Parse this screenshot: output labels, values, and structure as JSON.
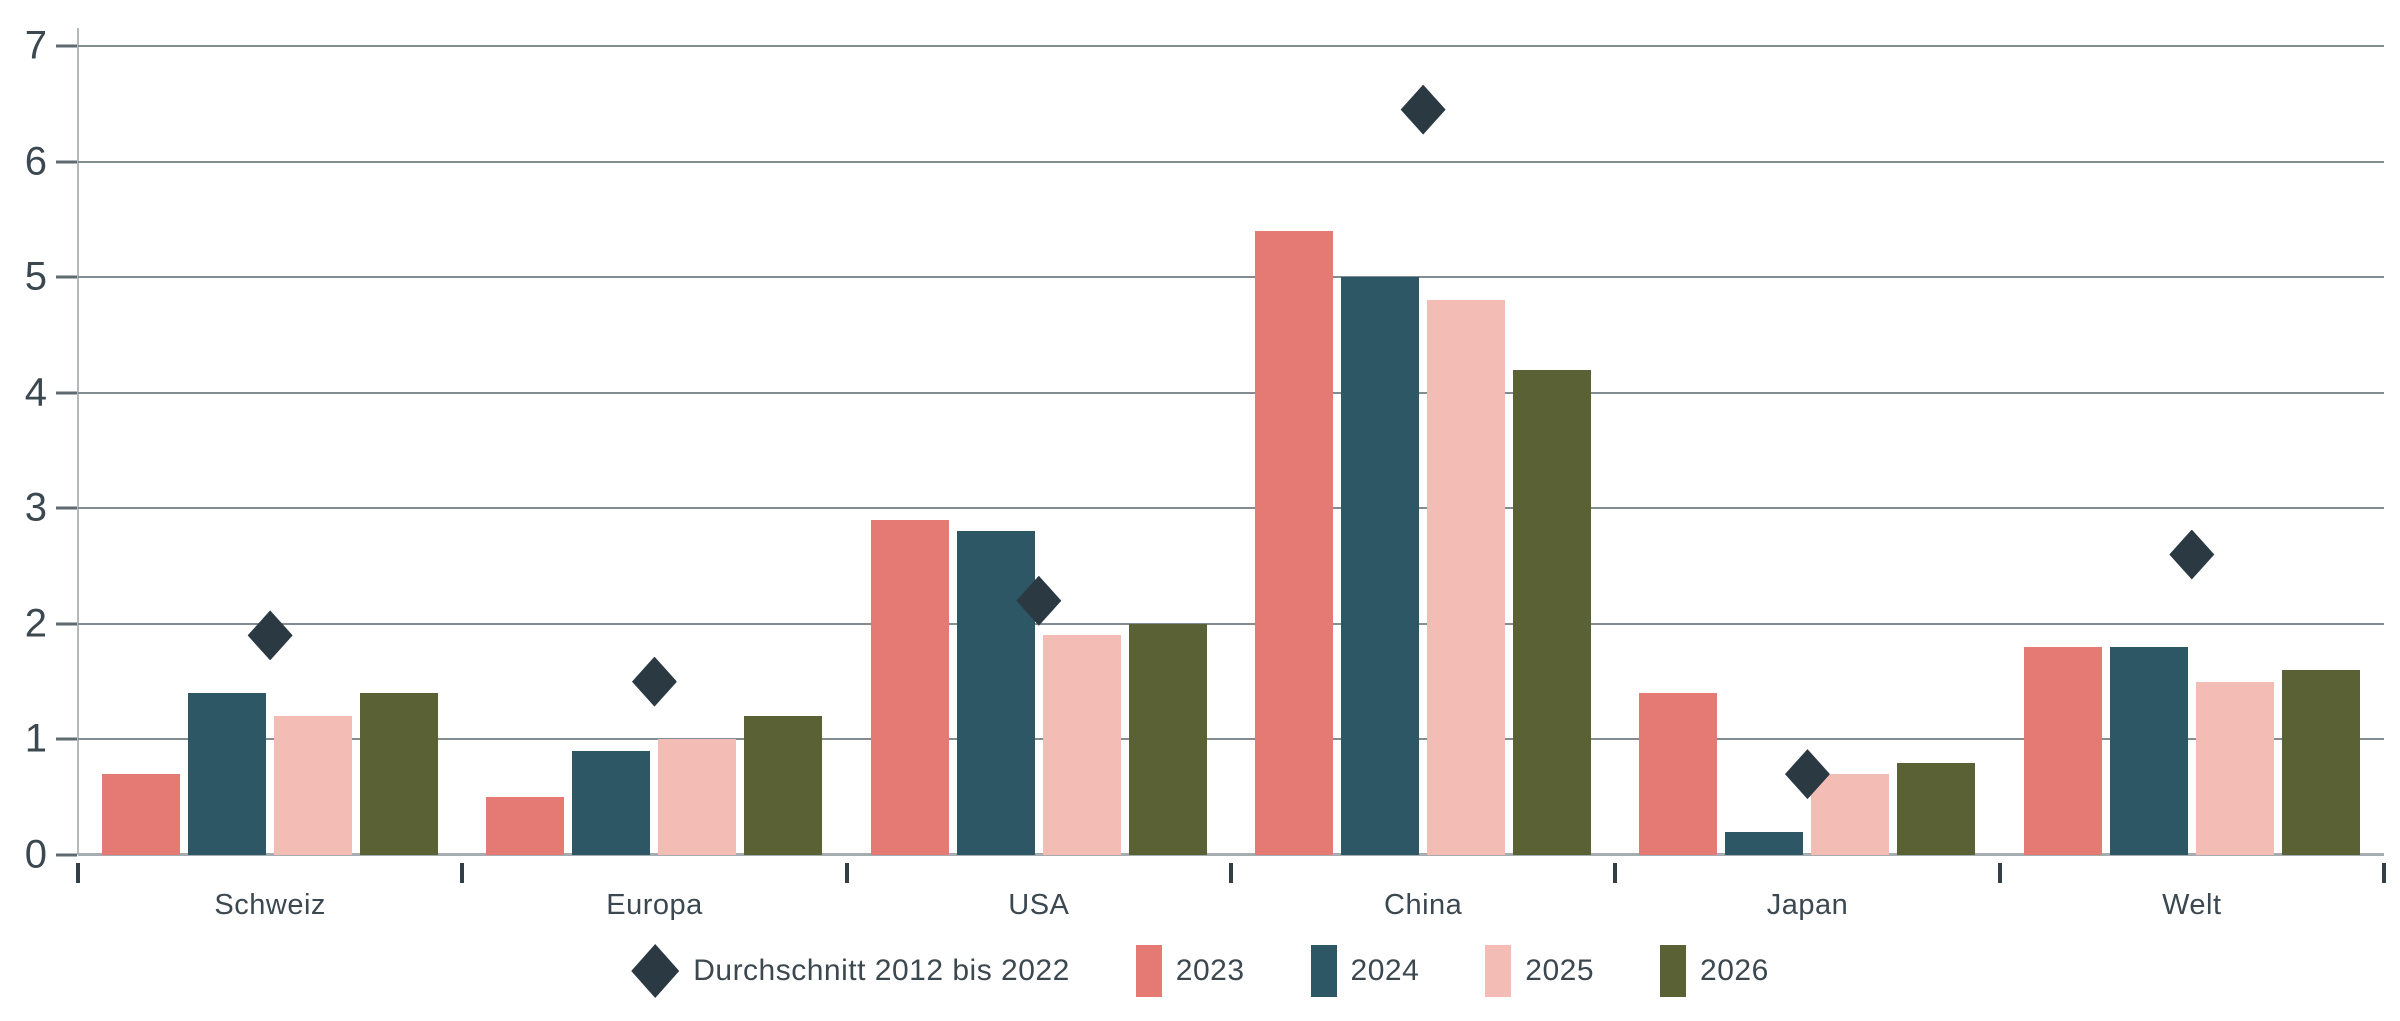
{
  "chart_data": {
    "type": "bar",
    "title": "",
    "categories": [
      "Schweiz",
      "Europa",
      "USA",
      "China",
      "Japan",
      "Welt"
    ],
    "series": [
      {
        "name": "2023",
        "color": "#E57973",
        "values": [
          0.7,
          0.5,
          2.9,
          5.4,
          1.4,
          1.8
        ]
      },
      {
        "name": "2024",
        "color": "#2E5765",
        "values": [
          1.4,
          0.9,
          2.8,
          5.0,
          0.2,
          1.8
        ]
      },
      {
        "name": "2025",
        "color": "#F3BCB4",
        "values": [
          1.2,
          1.0,
          1.9,
          4.8,
          0.7,
          1.5
        ]
      },
      {
        "name": "2026",
        "color": "#5A6134",
        "values": [
          1.4,
          1.2,
          2.0,
          4.2,
          0.8,
          1.6
        ]
      }
    ],
    "marker_series": {
      "name": "Durchschnitt 2012 bis 2022",
      "marker": "diamond",
      "color": "#2B3943",
      "values": [
        1.9,
        1.5,
        2.2,
        6.45,
        0.7,
        2.6
      ]
    },
    "xlabel": "",
    "ylabel": "",
    "ylim": [
      0,
      7
    ],
    "yticks": [
      0,
      1,
      2,
      3,
      4,
      5,
      6,
      7
    ],
    "grid": true,
    "legend_position": "bottom",
    "colors": {
      "gridline": "#828D91",
      "axis_baseline": "#A6ADB0",
      "yaxis_line": "#B3B9BC",
      "ytick": "#5E6A70",
      "boundary_tick": "#323F47",
      "text": "#3C4850"
    }
  }
}
